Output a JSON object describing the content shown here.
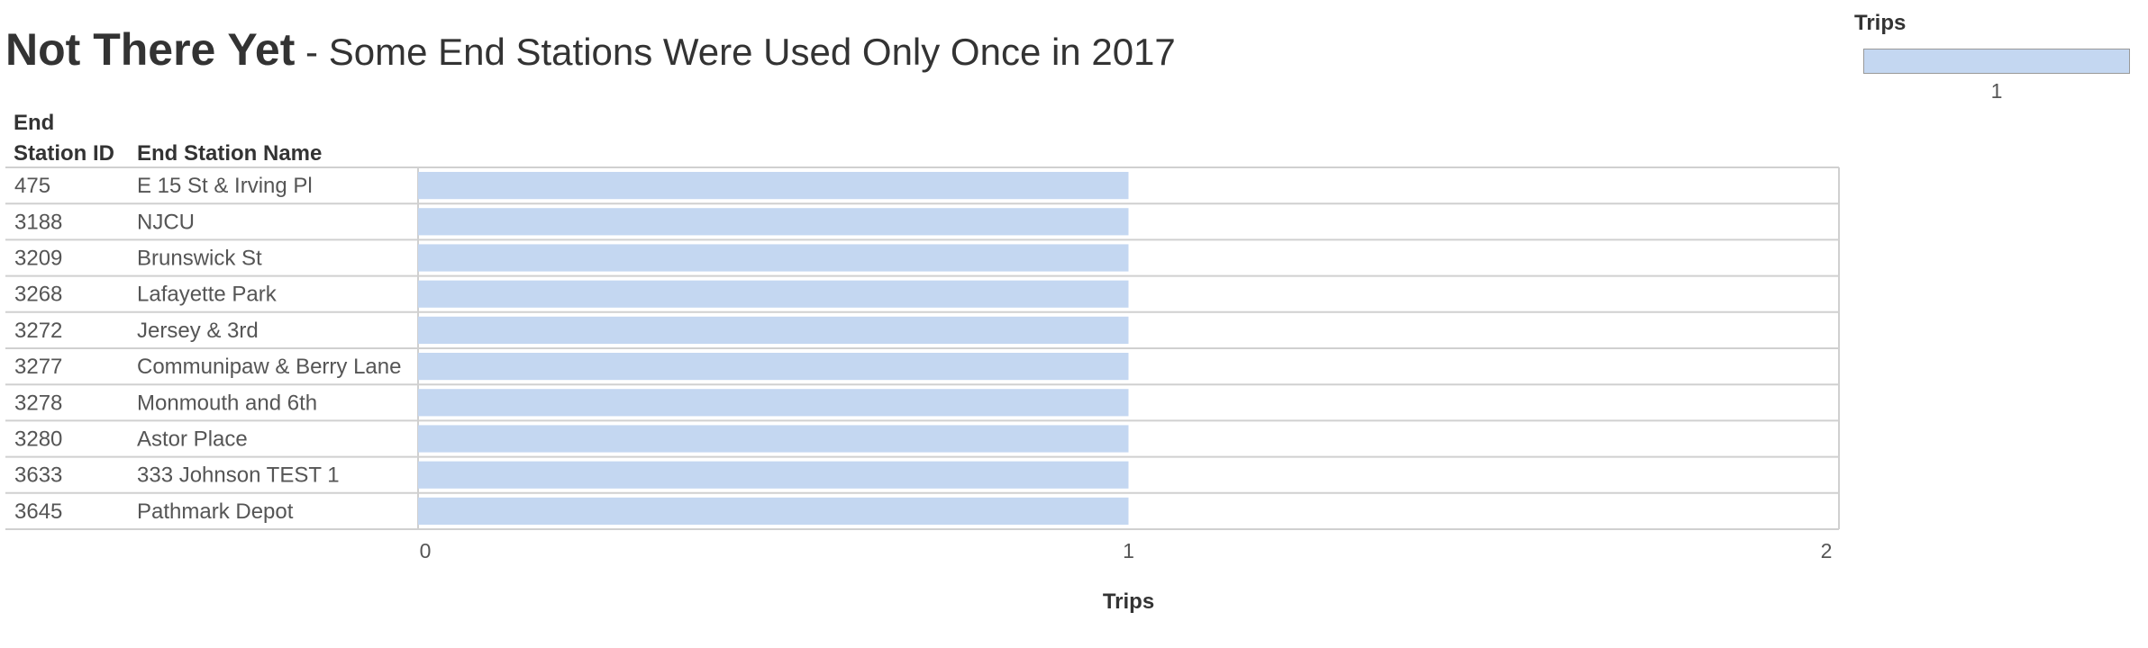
{
  "title": {
    "main": "Not There Yet",
    "sub": " - Some End Stations Were Used Only Once in 2017"
  },
  "columns": {
    "id_header": "End Station ID",
    "name_header": "End Station Name"
  },
  "legend": {
    "title": "Trips",
    "label": "1"
  },
  "colors": {
    "bar": "#c4d7f1",
    "gridline": "#d0d0d0"
  },
  "chart_data": {
    "type": "bar",
    "orientation": "horizontal",
    "rows": [
      {
        "id": "475",
        "name": "E 15 St & Irving Pl",
        "value": 1
      },
      {
        "id": "3188",
        "name": "NJCU",
        "value": 1
      },
      {
        "id": "3209",
        "name": "Brunswick St",
        "value": 1
      },
      {
        "id": "3268",
        "name": "Lafayette Park",
        "value": 1
      },
      {
        "id": "3272",
        "name": "Jersey & 3rd",
        "value": 1
      },
      {
        "id": "3277",
        "name": "Communipaw & Berry Lane",
        "value": 1
      },
      {
        "id": "3278",
        "name": "Monmouth and 6th",
        "value": 1
      },
      {
        "id": "3280",
        "name": "Astor Place",
        "value": 1
      },
      {
        "id": "3633",
        "name": "333 Johnson TEST 1",
        "value": 1
      },
      {
        "id": "3645",
        "name": "Pathmark Depot",
        "value": 1
      }
    ],
    "xlabel": "Trips",
    "xlim": [
      0,
      2
    ],
    "xticks": [
      "0",
      "1",
      "2"
    ],
    "grid": false,
    "legend": "top-right"
  }
}
